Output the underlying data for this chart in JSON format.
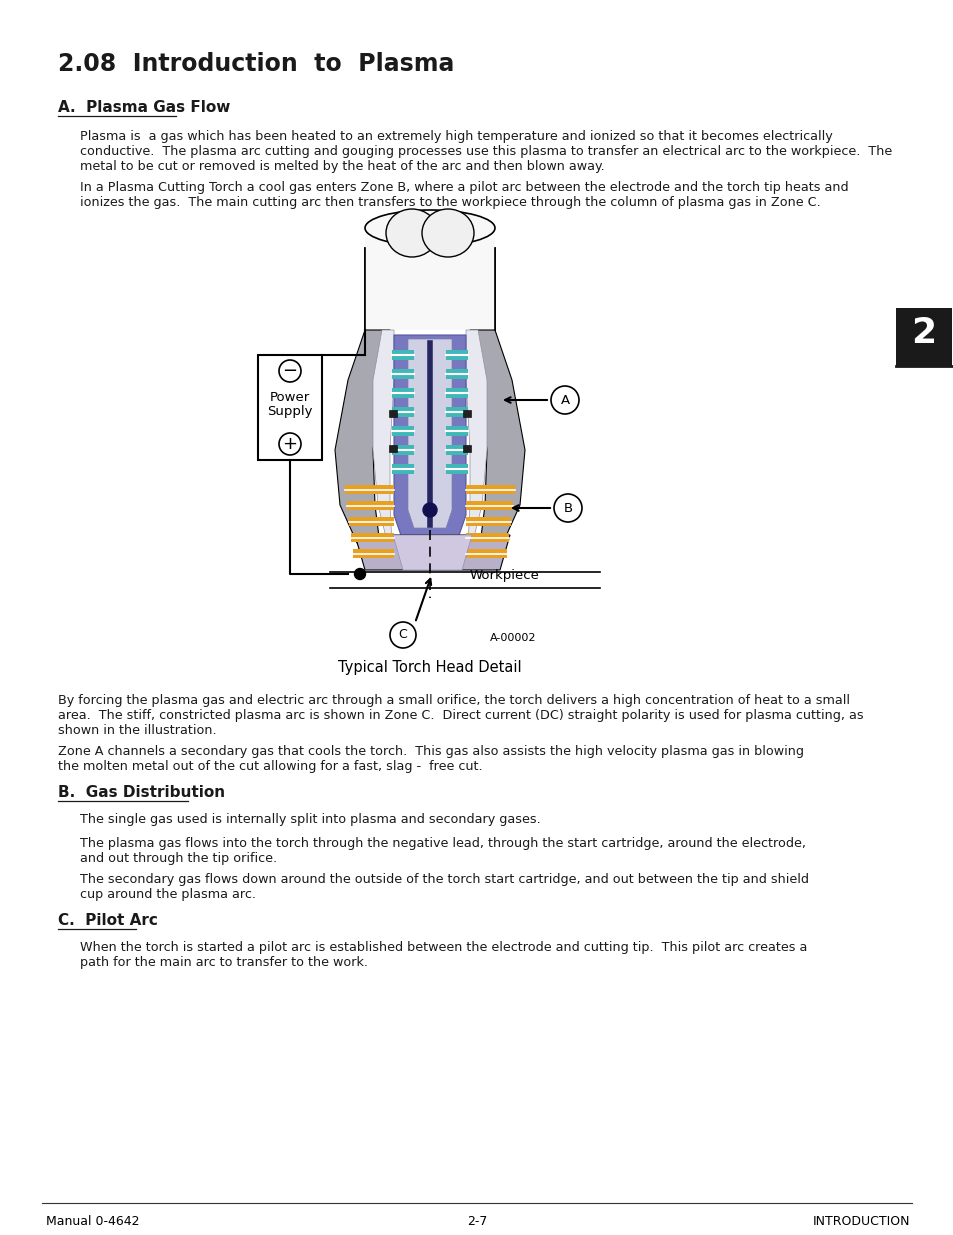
{
  "title": "2.08  Introduction  to  Plasma",
  "section_a_title": "A.  Plasma Gas Flow",
  "section_a_para1_lines": [
    "Plasma is  a gas which has been heated to an extremely high temperature and ionized so that it becomes electrically",
    "conductive.  The plasma arc cutting and gouging processes use this plasma to transfer an electrical arc to the workpiece.  The",
    "metal to be cut or removed is melted by the heat of the arc and then blown away."
  ],
  "section_a_para2_lines": [
    "In a Plasma Cutting Torch a cool gas enters Zone B, where a pilot arc between the electrode and the torch tip heats and",
    "ionizes the gas.  The main cutting arc then transfers to the workpiece through the column of plasma gas in Zone C."
  ],
  "diagram_caption": "Typical Torch Head Detail",
  "section_a_para3_lines": [
    "By forcing the plasma gas and electric arc through a small orifice, the torch delivers a high concentration of heat to a small",
    "area.  The stiff, constricted plasma arc is shown in Zone C.  Direct current (DC) straight polarity is used for plasma cutting, as",
    "shown in the illustration."
  ],
  "section_a_para4_lines": [
    "Zone A channels a secondary gas that cools the torch.  This gas also assists the high velocity plasma gas in blowing",
    "the molten metal out of the cut allowing for a fast, slag -  free cut."
  ],
  "section_b_title": "B.  Gas Distribution",
  "section_b_para1": "The single gas used is internally split into plasma and secondary gases.",
  "section_b_para2_lines": [
    "The plasma gas flows into the torch through the negative lead, through the start cartridge, around the electrode,",
    "and out through the tip orifice."
  ],
  "section_b_para3_lines": [
    "The secondary gas flows down around the outside of the torch start cartridge, and out between the tip and shield",
    "cup around the plasma arc."
  ],
  "section_c_title": "C.  Pilot Arc",
  "section_c_para1_lines": [
    "When the torch is started a pilot arc is established between the electrode and cutting tip.  This pilot arc creates a",
    "path for the main arc to transfer to the work."
  ],
  "footer_left": "Manual 0-4642",
  "footer_center": "2-7",
  "footer_right": "INTRODUCTION",
  "page_number": "2",
  "bg_color": "#ffffff",
  "text_color": "#1a1a1a",
  "teal_color": "#40b8b8",
  "orange_color": "#e8a020",
  "blue_purple": "#8080c0",
  "gray_outer": "#a0a0a8",
  "gray_light": "#d0d0d8"
}
